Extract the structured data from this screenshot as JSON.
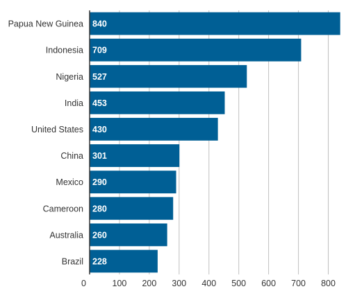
{
  "chart_data": {
    "type": "bar",
    "orientation": "horizontal",
    "title": "",
    "xlabel": "",
    "ylabel": "",
    "categories": [
      "Papua New Guinea",
      "Indonesia",
      "Nigeria",
      "India",
      "United States",
      "China",
      "Mexico",
      "Cameroon",
      "Australia",
      "Brazil"
    ],
    "values": [
      840,
      709,
      527,
      453,
      430,
      301,
      290,
      280,
      260,
      228
    ],
    "xlim": [
      0,
      850
    ],
    "x_ticks": [
      0,
      100,
      200,
      300,
      400,
      500,
      600,
      700,
      800
    ],
    "grid": true,
    "legend": "none",
    "bar_color": "#005f95",
    "data_label_color": "#ffffff"
  }
}
